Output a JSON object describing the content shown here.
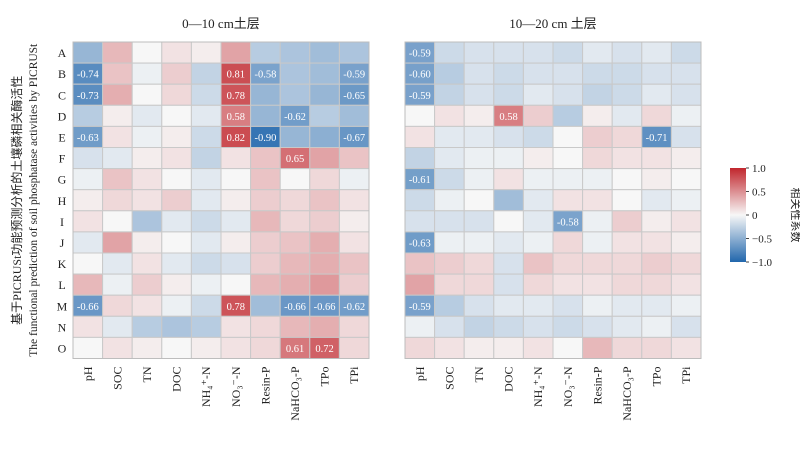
{
  "chart_data": {
    "type": "heatmap",
    "ylabel_lines": [
      "基于PICRUSt功能预测分析的土壤磷相关酶活性",
      "The functional prediction of soil phosphatase activities by PICRUSt"
    ],
    "rows": [
      "A",
      "B",
      "C",
      "D",
      "E",
      "F",
      "G",
      "H",
      "I",
      "J",
      "K",
      "L",
      "M",
      "N",
      "O"
    ],
    "columns": [
      "pH",
      "SOC",
      "TN",
      "DOC",
      "NH₄⁺-N",
      "NO₃⁻-N",
      "Resin-P",
      "NaHCO₃-P",
      "TPo",
      "TPi"
    ],
    "legend": {
      "title": "相关性系数",
      "ticks": [
        "1.0",
        "0.5",
        "0",
        "−0.5",
        "−1.0"
      ],
      "range": [
        -1,
        1
      ],
      "placement": "right",
      "colors": {
        "high": "#c1262d",
        "mid": "#f7f7f7",
        "low": "#2166ac"
      }
    },
    "panels": [
      {
        "title": "0—10 cm土层",
        "values": [
          [
            -0.45,
            0.3,
            0.0,
            0.1,
            0.05,
            0.4,
            -0.3,
            -0.35,
            -0.4,
            -0.35
          ],
          [
            -0.74,
            0.25,
            -0.05,
            0.2,
            -0.25,
            0.81,
            -0.58,
            -0.35,
            -0.4,
            -0.59
          ],
          [
            -0.73,
            0.35,
            0.0,
            0.15,
            -0.2,
            0.78,
            -0.45,
            -0.35,
            -0.45,
            -0.65
          ],
          [
            -0.3,
            0.05,
            -0.1,
            0.0,
            -0.1,
            0.58,
            -0.45,
            -0.62,
            -0.3,
            -0.4
          ],
          [
            -0.63,
            0.1,
            -0.05,
            0.05,
            -0.2,
            0.82,
            -0.9,
            -0.45,
            -0.5,
            -0.67
          ],
          [
            -0.15,
            -0.1,
            0.05,
            0.1,
            -0.25,
            0.1,
            0.25,
            0.65,
            0.4,
            0.25
          ],
          [
            -0.05,
            0.25,
            0.1,
            0.0,
            -0.1,
            0.0,
            0.25,
            0.0,
            0.15,
            -0.05
          ],
          [
            0.05,
            0.15,
            0.1,
            0.2,
            -0.1,
            0.05,
            0.2,
            0.15,
            0.25,
            0.1
          ],
          [
            0.1,
            0.0,
            -0.35,
            -0.1,
            -0.2,
            -0.1,
            0.3,
            0.15,
            0.2,
            0.05
          ],
          [
            -0.1,
            0.4,
            0.05,
            0.0,
            -0.1,
            0.05,
            0.2,
            0.25,
            0.35,
            0.1
          ],
          [
            0.0,
            -0.1,
            0.1,
            -0.1,
            -0.2,
            -0.15,
            0.2,
            0.3,
            0.35,
            0.25
          ],
          [
            0.3,
            -0.05,
            0.2,
            0.05,
            -0.05,
            0.0,
            0.3,
            0.35,
            0.45,
            0.2
          ],
          [
            -0.66,
            0.15,
            0.1,
            -0.05,
            -0.2,
            0.78,
            -0.4,
            -0.66,
            -0.66,
            -0.62
          ],
          [
            0.1,
            -0.1,
            -0.3,
            -0.35,
            -0.3,
            0.1,
            0.15,
            0.3,
            0.35,
            0.15
          ],
          [
            0.0,
            0.1,
            0.05,
            0.0,
            0.05,
            0.1,
            0.15,
            0.61,
            0.72,
            0.15
          ]
        ],
        "labels": [
          [
            "",
            "",
            "",
            "",
            "",
            "",
            "",
            "",
            "",
            ""
          ],
          [
            "-0.74",
            "",
            "",
            "",
            "",
            "0.81",
            "-0.58",
            "",
            "",
            "-0.59"
          ],
          [
            "-0.73",
            "",
            "",
            "",
            "",
            "0.78",
            "",
            "",
            "",
            "-0.65"
          ],
          [
            "",
            "",
            "",
            "",
            "",
            "0.58",
            "",
            "-0.62",
            "",
            ""
          ],
          [
            "-0.63",
            "",
            "",
            "",
            "",
            "0.82",
            "-0.90",
            "",
            "",
            "-0.67"
          ],
          [
            "",
            "",
            "",
            "",
            "",
            "",
            "",
            "0.65",
            "",
            ""
          ],
          [
            "",
            "",
            "",
            "",
            "",
            "",
            "",
            "",
            "",
            ""
          ],
          [
            "",
            "",
            "",
            "",
            "",
            "",
            "",
            "",
            "",
            ""
          ],
          [
            "",
            "",
            "",
            "",
            "",
            "",
            "",
            "",
            "",
            ""
          ],
          [
            "",
            "",
            "",
            "",
            "",
            "",
            "",
            "",
            "",
            ""
          ],
          [
            "",
            "",
            "",
            "",
            "",
            "",
            "",
            "",
            "",
            ""
          ],
          [
            "",
            "",
            "",
            "",
            "",
            "",
            "",
            "",
            "",
            ""
          ],
          [
            "-0.66",
            "",
            "",
            "",
            "",
            "0.78",
            "",
            "-0.66",
            "-0.66",
            "-0.62"
          ],
          [
            "",
            "",
            "",
            "",
            "",
            "",
            "",
            "",
            "",
            ""
          ],
          [
            "",
            "",
            "",
            "",
            "",
            "",
            "",
            "0.61",
            "0.72",
            ""
          ]
        ]
      },
      {
        "title": "10—20 cm 土层",
        "values": [
          [
            -0.59,
            -0.2,
            -0.15,
            -0.15,
            -0.15,
            -0.2,
            -0.1,
            -0.15,
            -0.1,
            -0.2
          ],
          [
            -0.6,
            -0.3,
            -0.15,
            -0.2,
            -0.15,
            -0.15,
            -0.2,
            -0.2,
            -0.15,
            -0.15
          ],
          [
            -0.59,
            -0.25,
            -0.15,
            -0.2,
            -0.1,
            -0.15,
            -0.25,
            -0.2,
            -0.1,
            -0.15
          ],
          [
            0.0,
            0.1,
            0.05,
            0.58,
            0.2,
            -0.3,
            0.05,
            -0.1,
            0.15,
            -0.05
          ],
          [
            0.1,
            -0.1,
            -0.1,
            -0.15,
            -0.2,
            0.0,
            0.2,
            0.15,
            -0.71,
            -0.15
          ],
          [
            -0.25,
            -0.1,
            -0.05,
            -0.05,
            0.05,
            0.0,
            0.15,
            0.1,
            0.1,
            0.05
          ],
          [
            -0.61,
            -0.2,
            -0.05,
            0.1,
            -0.05,
            -0.05,
            -0.05,
            0.0,
            0.05,
            0.0
          ],
          [
            -0.2,
            -0.05,
            0.0,
            -0.4,
            -0.1,
            0.1,
            0.1,
            0.0,
            -0.1,
            -0.05
          ],
          [
            -0.15,
            -0.15,
            -0.15,
            0.0,
            -0.1,
            -0.58,
            -0.05,
            0.2,
            0.05,
            0.1
          ],
          [
            -0.63,
            -0.05,
            -0.05,
            -0.1,
            -0.05,
            0.15,
            -0.05,
            0.1,
            0.1,
            0.05
          ],
          [
            0.25,
            0.2,
            0.15,
            -0.15,
            0.25,
            0.15,
            0.15,
            0.15,
            0.2,
            0.15
          ],
          [
            0.4,
            0.15,
            0.15,
            -0.15,
            0.15,
            0.1,
            0.1,
            0.15,
            0.15,
            0.1
          ],
          [
            -0.59,
            -0.3,
            -0.15,
            -0.1,
            -0.1,
            -0.15,
            -0.05,
            -0.1,
            -0.1,
            -0.05
          ],
          [
            -0.05,
            -0.15,
            -0.25,
            -0.2,
            -0.15,
            -0.2,
            -0.15,
            -0.1,
            -0.05,
            -0.15
          ],
          [
            0.15,
            0.1,
            0.05,
            0.05,
            0.1,
            0.0,
            0.3,
            0.15,
            0.15,
            0.1
          ]
        ],
        "labels": [
          [
            "-0.59",
            "",
            "",
            "",
            "",
            "",
            "",
            "",
            "",
            ""
          ],
          [
            "-0.60",
            "",
            "",
            "",
            "",
            "",
            "",
            "",
            "",
            ""
          ],
          [
            "-0.59",
            "",
            "",
            "",
            "",
            "",
            "",
            "",
            "",
            ""
          ],
          [
            "",
            "",
            "",
            "0.58",
            "",
            "",
            "",
            "",
            "",
            ""
          ],
          [
            "",
            "",
            "",
            "",
            "",
            "",
            "",
            "",
            "-0.71",
            ""
          ],
          [
            "",
            "",
            "",
            "",
            "",
            "",
            "",
            "",
            "",
            ""
          ],
          [
            "-0.61",
            "",
            "",
            "",
            "",
            "",
            "",
            "",
            "",
            ""
          ],
          [
            "",
            "",
            "",
            "",
            "",
            "",
            "",
            "",
            "",
            ""
          ],
          [
            "",
            "",
            "",
            "",
            "",
            "-0.58",
            "",
            "",
            "",
            ""
          ],
          [
            "-0.63",
            "",
            "",
            "",
            "",
            "",
            "",
            "",
            "",
            ""
          ],
          [
            "",
            "",
            "",
            "",
            "",
            "",
            "",
            "",
            "",
            ""
          ],
          [
            "",
            "",
            "",
            "",
            "",
            "",
            "",
            "",
            "",
            ""
          ],
          [
            "-0.59",
            "",
            "",
            "",
            "",
            "",
            "",
            "",
            "",
            ""
          ],
          [
            "",
            "",
            "",
            "",
            "",
            "",
            "",
            "",
            "",
            ""
          ],
          [
            "",
            "",
            "",
            "",
            "",
            "",
            "",
            "",
            "",
            ""
          ]
        ]
      }
    ]
  }
}
